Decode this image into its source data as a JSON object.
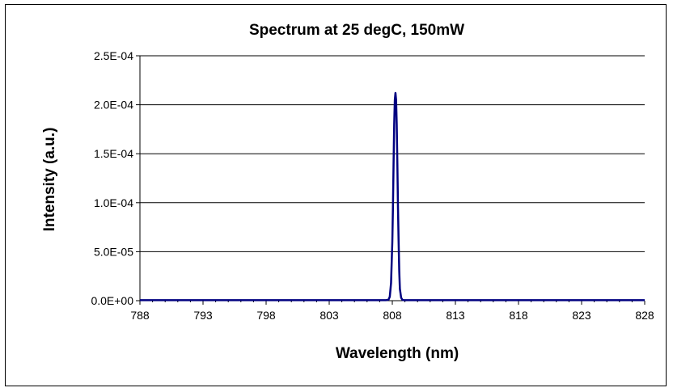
{
  "chart_data": {
    "type": "line",
    "title": "Spectrum at 25 degC, 150mW",
    "xlabel": "Wavelength (nm)",
    "ylabel": "Intensity (a.u.)",
    "xlim": [
      788,
      828
    ],
    "ylim": [
      0,
      0.00025
    ],
    "x_ticks": [
      788,
      793,
      798,
      803,
      808,
      813,
      818,
      823,
      828
    ],
    "x_tick_labels": [
      "788",
      "793",
      "798",
      "803",
      "808",
      "813",
      "818",
      "823",
      "828"
    ],
    "y_ticks": [
      0,
      5e-05,
      0.0001,
      0.00015,
      0.0002,
      0.00025
    ],
    "y_tick_labels": [
      "0.0E+00",
      "5.0E-05",
      "1.0E-04",
      "1.5E-04",
      "2.0E-04",
      "2.5E-04"
    ],
    "grid": "horizontal",
    "legend": "none",
    "line_color": "#000080",
    "series": [
      {
        "x": [
          788,
          800,
          807.5,
          807.7,
          807.8,
          807.9,
          808.0,
          808.05,
          808.1,
          808.15,
          808.2,
          808.25,
          808.3,
          808.35,
          808.4,
          808.45,
          808.5,
          808.55,
          808.6,
          808.7,
          808.8,
          808.9,
          809.1,
          815,
          828
        ],
        "y": [
          5e-07,
          5e-07,
          5e-07,
          1e-06,
          4e-06,
          1.8e-05,
          6e-05,
          9.5e-05,
          0.00014,
          0.00018,
          0.000205,
          0.000212,
          0.000205,
          0.00018,
          0.00014,
          9.5e-05,
          6e-05,
          3e-05,
          1.2e-05,
          3e-06,
          8e-07,
          5e-07,
          5e-07,
          5e-07,
          5e-07
        ]
      }
    ]
  }
}
